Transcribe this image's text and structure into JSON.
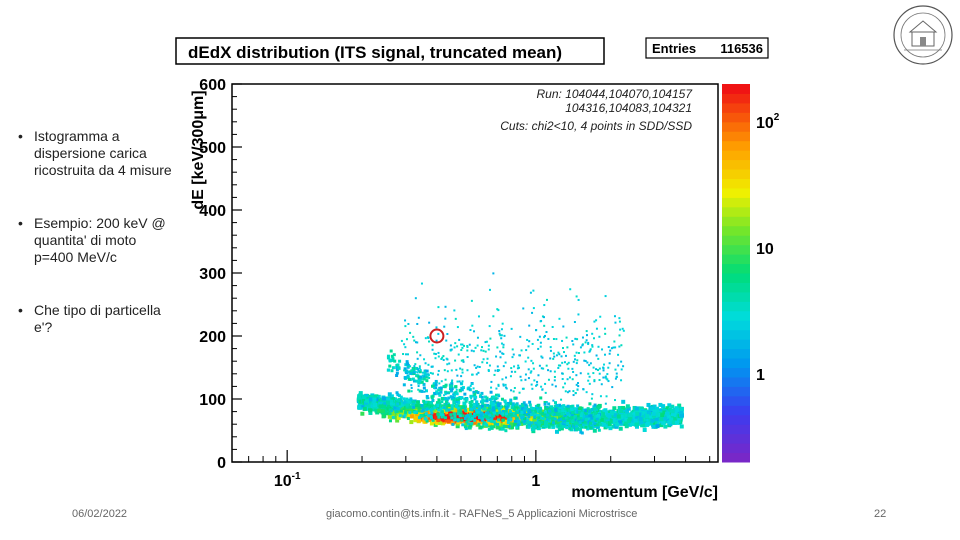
{
  "bullets": [
    "Istogramma a dispersione carica ricostruita da 4 misure",
    "Esempio: 200 keV @ quantita' di moto p=400 MeV/c",
    "Che tipo di particella e'?"
  ],
  "footer": {
    "date": "06/02/2022",
    "author": "giacomo.contin@ts.infn.it - RAFNeS_5 Applicazioni Microstrisce",
    "page": "22"
  },
  "colors": {
    "marker": "#cc2020",
    "frame": "#000000"
  },
  "chart_data": {
    "type": "heatmap",
    "title": "dEdX distribution (ITS signal, truncated mean)",
    "stats_label": "Entries",
    "stats_value": "116536",
    "run_line1": "Run: 104044,104070,104157",
    "run_line2": "104316,104083,104321",
    "cuts": "Cuts: chi2<10, 4 points in SDD/SSD",
    "xlabel": "momentum [GeV/c]",
    "ylabel": "dE [keV/300μm]",
    "x_scale": "log",
    "xlim": [
      0.06,
      5.4
    ],
    "ylim": [
      0,
      600
    ],
    "x_ticks": [
      {
        "value": 0.1,
        "label": "10",
        "sup": "-1"
      },
      {
        "value": 1,
        "label": "1",
        "sup": ""
      }
    ],
    "y_ticks": [
      0,
      100,
      200,
      300,
      400,
      500,
      600
    ],
    "z_scale": "log",
    "z_ticks": [
      {
        "value": 1,
        "label": "1",
        "sup": ""
      },
      {
        "value": 10,
        "label": "10",
        "sup": ""
      },
      {
        "value": 100,
        "label": "10",
        "sup": "2"
      }
    ],
    "marker": {
      "x": 0.4,
      "y": 200
    }
  }
}
